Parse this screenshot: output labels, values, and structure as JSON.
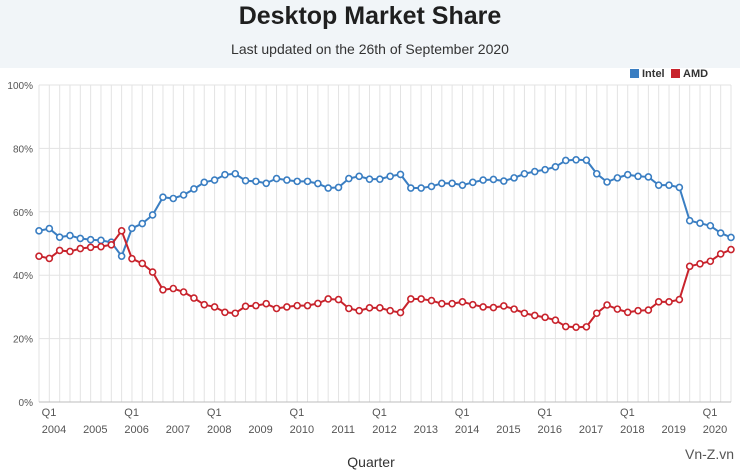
{
  "header": {
    "title": "Desktop Market Share",
    "subtitle": "Last updated on the 26th of September 2020"
  },
  "watermark": "Vn-Z.vn",
  "colors": {
    "intel": "#3a7ec2",
    "amd": "#c8232c",
    "grid": "#e3e3e3",
    "axis": "#555555"
  },
  "chart_data": {
    "type": "line",
    "title": "Desktop Market Share",
    "subtitle": "Last updated on the 26th of September 2020",
    "xlabel": "Quarter",
    "ylabel": "",
    "ylim": [
      0,
      100
    ],
    "y_ticks": [
      0,
      20,
      40,
      60,
      80,
      100
    ],
    "y_tick_labels": [
      "0%",
      "20%",
      "40%",
      "60%",
      "80%",
      "100%"
    ],
    "quarter_tick_label": "Q1",
    "years": [
      "2004",
      "2005",
      "2006",
      "2007",
      "2008",
      "2009",
      "2010",
      "2011",
      "2012",
      "2013",
      "2014",
      "2015",
      "2016",
      "2017",
      "2018",
      "2019",
      "2020"
    ],
    "x_start": "2004 Q1",
    "x_end": "2020 Q3",
    "legend": {
      "position": "top-right",
      "entries": [
        "Intel",
        "AMD"
      ]
    },
    "series": [
      {
        "name": "Intel",
        "values": [
          54.0,
          54.7,
          52.0,
          52.5,
          51.6,
          51.2,
          51.0,
          50.4,
          46.0,
          54.8,
          56.3,
          59.0,
          64.6,
          64.2,
          65.3,
          67.2,
          69.3,
          70.0,
          71.7,
          72.0,
          69.8,
          69.6,
          69.0,
          70.5,
          70.0,
          69.6,
          69.6,
          68.9,
          67.5,
          67.7,
          70.5,
          71.2,
          70.3,
          70.3,
          71.2,
          71.8,
          67.5,
          67.5,
          68.0,
          69.0,
          69.0,
          68.4,
          69.3,
          70.0,
          70.2,
          69.7,
          70.7,
          72.0,
          72.7,
          73.3,
          74.2,
          76.2,
          76.4,
          76.3,
          72.0,
          69.4,
          70.7,
          71.7,
          71.2,
          71.0,
          68.4,
          68.4,
          67.7,
          57.2,
          56.4,
          55.6,
          53.3,
          51.9
        ]
      },
      {
        "name": "AMD",
        "values": [
          46.0,
          45.3,
          47.8,
          47.5,
          48.4,
          48.8,
          49.0,
          49.6,
          54.0,
          45.2,
          43.7,
          41.0,
          35.4,
          35.8,
          34.7,
          32.8,
          30.7,
          30.0,
          28.3,
          28.0,
          30.2,
          30.4,
          31.0,
          29.5,
          30.0,
          30.4,
          30.4,
          31.1,
          32.5,
          32.3,
          29.5,
          28.8,
          29.7,
          29.7,
          28.8,
          28.2,
          32.5,
          32.5,
          32.0,
          31.0,
          31.0,
          31.6,
          30.7,
          30.0,
          29.8,
          30.3,
          29.3,
          28.0,
          27.3,
          26.7,
          25.8,
          23.8,
          23.6,
          23.7,
          28.0,
          30.6,
          29.3,
          28.3,
          28.8,
          29.0,
          31.6,
          31.6,
          32.3,
          42.8,
          43.6,
          44.4,
          46.7,
          48.1
        ]
      }
    ]
  }
}
